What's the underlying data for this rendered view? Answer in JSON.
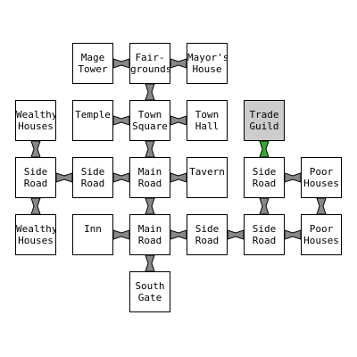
{
  "colors": {
    "room_fill": "#ffffff",
    "current_fill": "#cccccc",
    "border": "#000000",
    "link": "#888888",
    "active_link": "#33aa33"
  },
  "rooms": {
    "mage_tower": "Mage\nTower",
    "fairgrounds": "Fair-\ngrounds",
    "mayors_house": "Mayor's\nHouse",
    "wealthy_houses_1": "Wealthy\nHouses",
    "temple": "Temple",
    "town_square": "Town\nSquare",
    "town_hall": "Town\nHall",
    "trade_guild": "Trade\nGuild",
    "side_road_1": "Side\nRoad",
    "side_road_2": "Side\nRoad",
    "main_road_1": "Main\nRoad",
    "tavern": "Tavern",
    "side_road_3": "Side\nRoad",
    "poor_houses_1": "Poor\nHouses",
    "wealthy_houses_2": "Wealthy\nHouses",
    "inn": "Inn",
    "main_road_2": "Main\nRoad",
    "side_road_4": "Side\nRoad",
    "side_road_5": "Side\nRoad",
    "poor_houses_2": "Poor\nHouses",
    "south_gate": "South\nGate"
  }
}
